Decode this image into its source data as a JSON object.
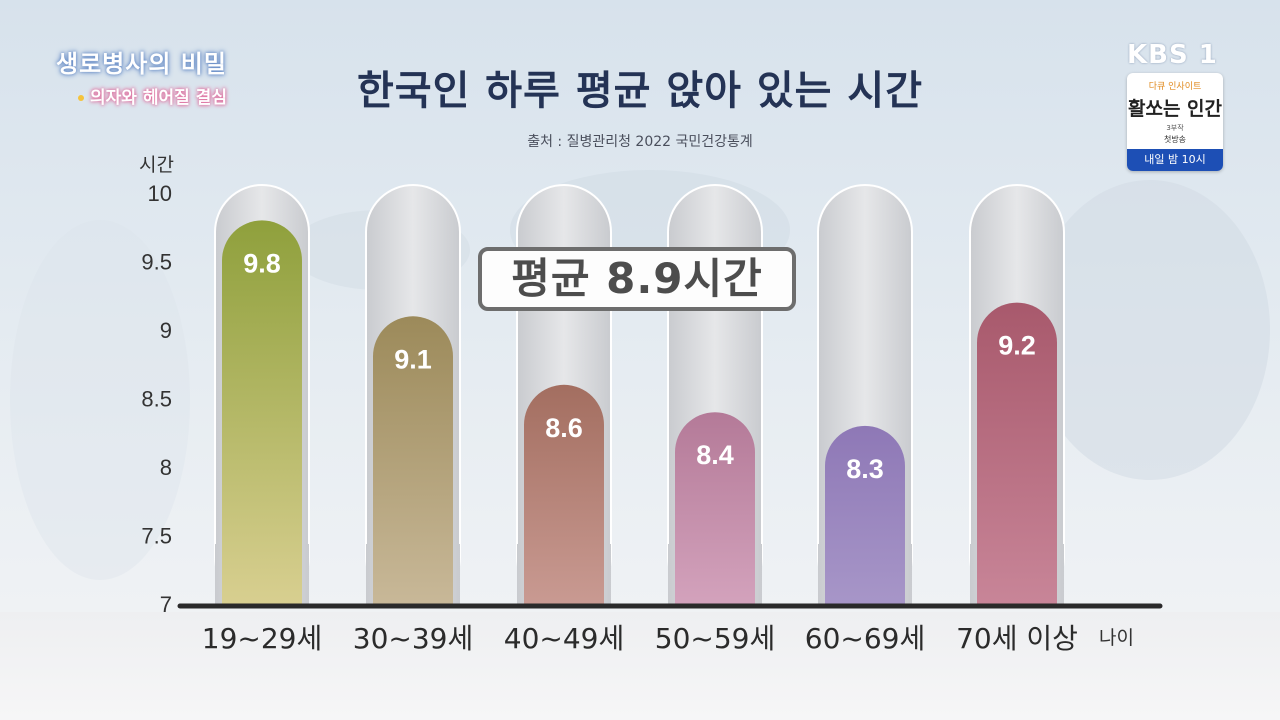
{
  "program": {
    "title": "생로병사의 비밀",
    "subtitle": "의자와 헤어질 결심"
  },
  "broadcaster": "KBS 1",
  "promo": {
    "top": "다큐 인사이트",
    "title": "활쏘는 인간",
    "sub1": "3부작",
    "sub2": "첫방송",
    "schedule": "내일 밤 10시"
  },
  "chart_data": {
    "type": "bar",
    "title": "한국인 하루 평균 앉아 있는 시간",
    "source": "출처 : 질병관리청 2022 국민건강통계",
    "ylabel": "시간",
    "xlabel": "나이",
    "ylim": [
      7,
      10
    ],
    "yticks": [
      "10",
      "9.5",
      "9",
      "8.5",
      "8",
      "7.5",
      "7"
    ],
    "ytick_values": [
      10,
      9.5,
      9,
      8.5,
      8,
      7.5,
      7
    ],
    "categories": [
      "19~29세",
      "30~39세",
      "40~49세",
      "50~59세",
      "60~69세",
      "70세 이상"
    ],
    "values": [
      9.8,
      9.1,
      8.6,
      8.4,
      8.3,
      9.2
    ],
    "value_labels": [
      "9.8",
      "9.1",
      "8.6",
      "8.4",
      "8.3",
      "9.2"
    ],
    "colors": [
      [
        "#8fa03c",
        "#d8cf90"
      ],
      [
        "#9c8a5a",
        "#c8b898"
      ],
      [
        "#a36e60",
        "#c99a92"
      ],
      [
        "#b47a98",
        "#d3a2bc"
      ],
      [
        "#8e78b6",
        "#a796c8"
      ],
      [
        "#a8596c",
        "#c88598"
      ]
    ],
    "annotation": "평균 8.9시간",
    "grid": false
  }
}
